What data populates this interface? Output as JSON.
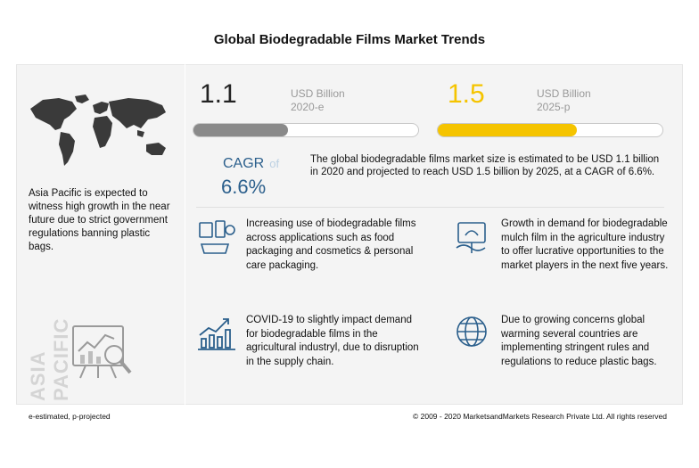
{
  "title": "Global Biodegradable Films Market Trends",
  "region": {
    "text": "Asia Pacific is expected to witness high growth in the near future due to strict government regulations banning plastic bags.",
    "vertical_label": "ASIA PACIFIC"
  },
  "chart_data": {
    "type": "bar",
    "categories": [
      "2020-e",
      "2025-p"
    ],
    "values": [
      1.1,
      1.5
    ],
    "value_labels": [
      "1.1",
      "1.5"
    ],
    "unit": "USD Billion",
    "colors": [
      "#8a8a8a",
      "#f5c400"
    ],
    "fill_fraction": [
      0.42,
      0.62
    ],
    "cagr_label": "CAGR",
    "cagr_of": "of",
    "cagr_value": "6.6%"
  },
  "summary": "The global biodegradable  films market size is estimated to be USD 1.1 billion in 2020 and projected to reach USD 1.5 billion by 2025, at a CAGR of 6.6%.",
  "points": [
    {
      "text": "Increasing use of biodegradable films across applications such as food packaging and cosmetics & personal care packaging.",
      "icon": "food-packaging-icon"
    },
    {
      "text": "Growth in demand for biodegradable mulch film in the agriculture industry to offer lucrative opportunities to the market players in the next five years.",
      "icon": "mulch-film-icon"
    },
    {
      "text": "COVID-19 to slightly impact demand for biodegradable films in the agricultural industryl, due to disruption in the supply chain.",
      "icon": "bar-chart-icon"
    },
    {
      "text": "Due to growing concerns global warming several countries are implementing stringent rules and regulations to reduce plastic bags.",
      "icon": "globe-icon"
    }
  ],
  "footer": {
    "left": "e-estimated, p-projected",
    "right": "© 2009 - 2020 MarketsandMarkets Research Private Ltd. All rights reserved"
  }
}
